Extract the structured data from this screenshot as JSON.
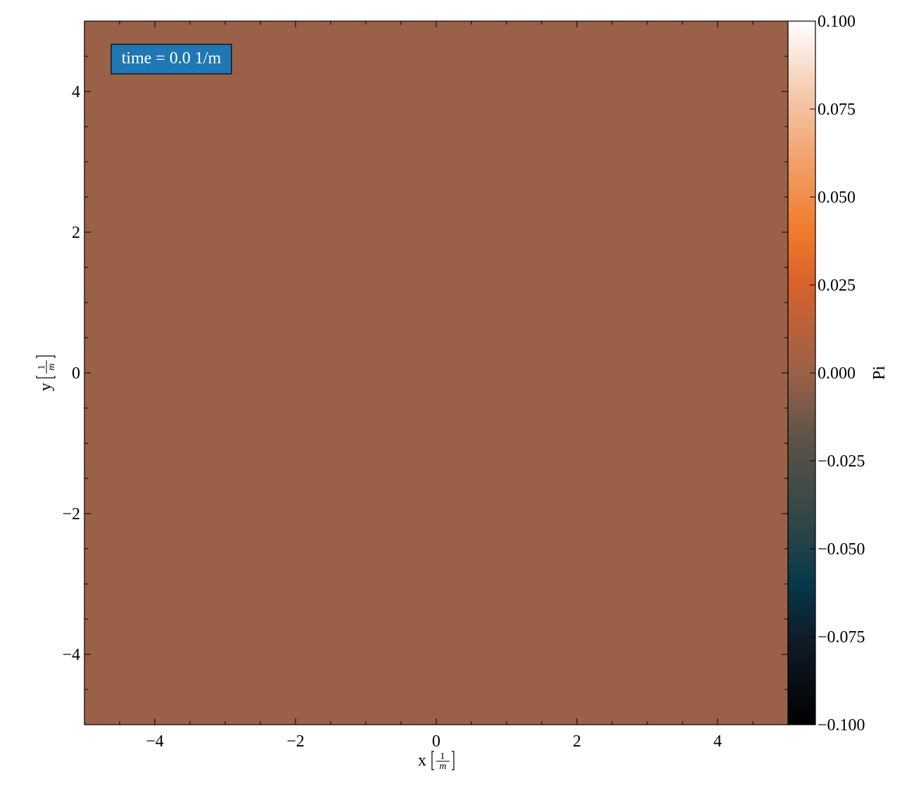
{
  "chart_data": {
    "type": "heatmap",
    "title": "",
    "xlabel": "x",
    "ylabel": "y",
    "axis_unit": {
      "numerator": "1",
      "denominator": "m"
    },
    "xlim": [
      -5,
      5
    ],
    "ylim": [
      -5,
      5
    ],
    "x_ticks": [
      -4,
      -2,
      0,
      2,
      4
    ],
    "y_ticks": [
      -4,
      -2,
      0,
      2,
      4
    ],
    "x_tick_labels": [
      "−4",
      "−2",
      "0",
      "2",
      "4"
    ],
    "y_tick_labels": [
      "−4",
      "−2",
      "0",
      "2",
      "4"
    ],
    "minor_tick_step": 0.5,
    "grid": false,
    "field_value": 0.0,
    "field_color": "#9a6148",
    "annotation": {
      "text": "time = 0.0 1/m",
      "background": "#1f77b4",
      "text_color": "#ffffff",
      "placement": "top-left"
    },
    "colorbar": {
      "label": "Pi",
      "range": [
        -0.1,
        0.1
      ],
      "ticks": [
        0.1,
        0.075,
        0.05,
        0.025,
        0.0,
        -0.025,
        -0.05,
        -0.075,
        -0.1
      ],
      "tick_labels": [
        "0.100",
        "0.075",
        "0.050",
        "0.025",
        "0.000",
        "−0.025",
        "−0.050",
        "−0.075",
        "−0.100"
      ],
      "colormap_stops": [
        {
          "value": -0.1,
          "color": "#000000"
        },
        {
          "value": -0.075,
          "color": "#101c2a"
        },
        {
          "value": -0.06,
          "color": "#04394a"
        },
        {
          "value": -0.045,
          "color": "#2b4448"
        },
        {
          "value": -0.02,
          "color": "#5a5248"
        },
        {
          "value": 0.0,
          "color": "#9a6148"
        },
        {
          "value": 0.025,
          "color": "#d8612c"
        },
        {
          "value": 0.04,
          "color": "#f07a2a"
        },
        {
          "value": 0.06,
          "color": "#f2a06a"
        },
        {
          "value": 0.08,
          "color": "#f5cbb0"
        },
        {
          "value": 0.1,
          "color": "#ffffff"
        }
      ],
      "placement": "right"
    }
  }
}
